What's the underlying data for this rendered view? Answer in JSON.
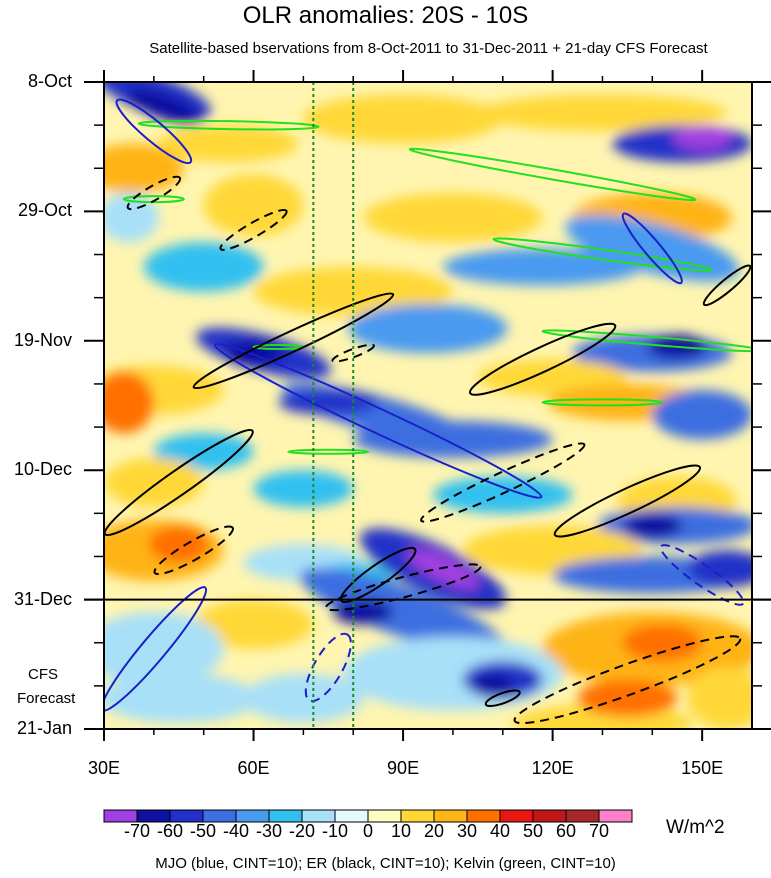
{
  "chart_data": {
    "type": "heatmap",
    "title": "OLR anomalies: 20S - 10S",
    "subtitle": "Satellite-based bservations from 8-Oct-2011 to 31-Dec-2011 + 21-day CFS Forecast",
    "x_ticks": [
      {
        "value": 30,
        "label": "30E"
      },
      {
        "value": 60,
        "label": "60E"
      },
      {
        "value": 90,
        "label": "90E"
      },
      {
        "value": 120,
        "label": "120E"
      },
      {
        "value": 150,
        "label": "150E"
      }
    ],
    "xlim": [
      30,
      160
    ],
    "y_ticks": [
      {
        "value": 0,
        "label": "8-Oct"
      },
      {
        "value": 21,
        "label": "29-Oct"
      },
      {
        "value": 42,
        "label": "19-Nov"
      },
      {
        "value": 63,
        "label": "10-Dec"
      },
      {
        "value": 84,
        "label": "31-Dec"
      },
      {
        "value": 105,
        "label": "21-Jan"
      }
    ],
    "ylim": [
      0,
      105
    ],
    "forecast_line_day": 84,
    "forecast_label": [
      "CFS",
      "Forecast"
    ],
    "reference_longitudes": [
      72,
      80
    ],
    "colorbar": {
      "levels": [
        -70,
        -60,
        -50,
        -40,
        -30,
        -20,
        -10,
        0,
        10,
        20,
        30,
        40,
        50,
        60,
        70
      ],
      "label_text": [
        "-70",
        "-60",
        "-50",
        "-40",
        "-30",
        "-20",
        "-10",
        "0",
        "10",
        "20",
        "30",
        "40",
        "50",
        "60",
        "70"
      ],
      "colors": [
        "#a040e0",
        "#1010a0",
        "#2030c8",
        "#3c6ee0",
        "#4a9af0",
        "#30c0f0",
        "#a8e0f8",
        "#e8f8ff",
        "#fffac0",
        "#ffd838",
        "#ffb418",
        "#ff7000",
        "#e81810",
        "#c01818",
        "#a82828",
        "#ff80c8"
      ],
      "units": "W/m^2"
    },
    "contour_legend": "MJO (blue, CINT=10); ER (black, CINT=10); Kelvin (green, CINT=10)",
    "contour_colors": {
      "MJO": "#1a20c8",
      "ER": "#000000",
      "Kelvin": "#20e020"
    }
  }
}
